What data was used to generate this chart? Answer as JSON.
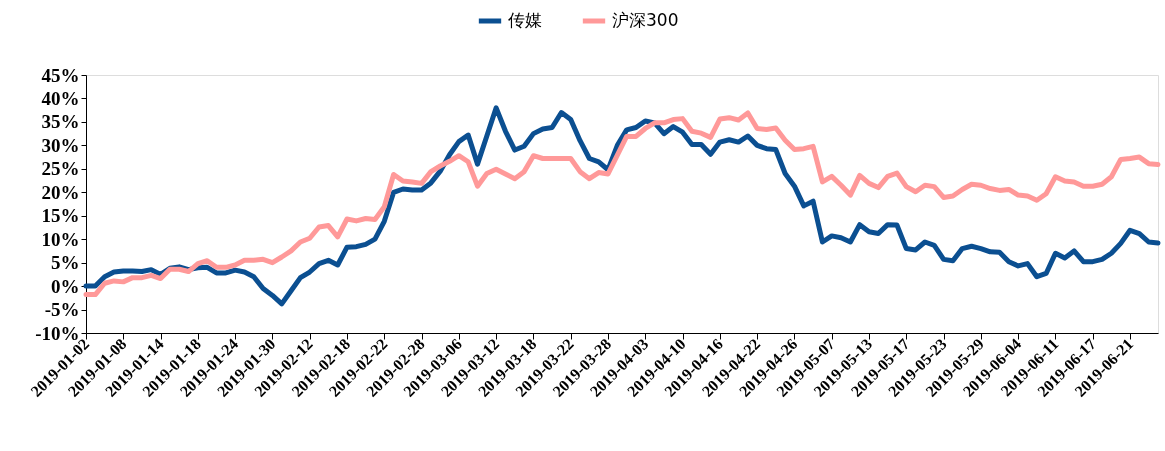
{
  "chart_data": {
    "type": "line",
    "categories": [
      "2019-01-02",
      null,
      null,
      null,
      "2019-01-08",
      null,
      null,
      null,
      "2019-01-14",
      null,
      null,
      null,
      "2019-01-18",
      null,
      null,
      null,
      "2019-01-24",
      null,
      null,
      null,
      "2019-01-30",
      null,
      null,
      null,
      "2019-02-12",
      null,
      null,
      null,
      "2019-02-18",
      null,
      null,
      null,
      "2019-02-22",
      null,
      null,
      null,
      "2019-02-28",
      null,
      null,
      null,
      "2019-03-06",
      null,
      null,
      null,
      "2019-03-12",
      null,
      null,
      null,
      "2019-03-18",
      null,
      null,
      null,
      "2019-03-22",
      null,
      null,
      null,
      "2019-03-28",
      null,
      null,
      null,
      "2019-04-03",
      null,
      null,
      null,
      "2019-04-10",
      null,
      null,
      null,
      "2019-04-16",
      null,
      null,
      null,
      "2019-04-22",
      null,
      null,
      null,
      "2019-04-26",
      null,
      null,
      null,
      "2019-05-07",
      null,
      null,
      null,
      "2019-05-13",
      null,
      null,
      null,
      "2019-05-17",
      null,
      null,
      null,
      "2019-05-23",
      null,
      null,
      null,
      "2019-05-29",
      null,
      null,
      null,
      "2019-06-04",
      null,
      null,
      null,
      "2019-06-11",
      null,
      null,
      null,
      "2019-06-17",
      null,
      null,
      null,
      "2019-06-21",
      null,
      null,
      null
    ],
    "series": [
      {
        "name": "传媒",
        "color": "#0b4f91",
        "values": [
          0.0,
          0.0,
          2.0,
          3.0,
          3.2,
          3.2,
          3.1,
          3.5,
          2.5,
          3.8,
          4.1,
          3.5,
          3.9,
          4.0,
          2.8,
          2.8,
          3.4,
          3.0,
          2.0,
          -0.5,
          -2.0,
          -3.8,
          -1.0,
          1.8,
          3.0,
          4.8,
          5.5,
          4.5,
          8.3,
          8.4,
          8.9,
          10.0,
          13.8,
          20.0,
          20.7,
          20.5,
          20.5,
          22.0,
          24.5,
          28.0,
          30.8,
          32.2,
          26.0,
          32.0,
          38.0,
          33.0,
          29.0,
          29.8,
          32.5,
          33.5,
          33.8,
          37.0,
          35.5,
          31.0,
          27.2,
          26.5,
          24.8,
          30.0,
          33.3,
          33.8,
          35.2,
          34.8,
          32.5,
          34.0,
          32.8,
          30.2,
          30.2,
          28.1,
          30.7,
          31.2,
          30.7,
          32.0,
          30.0,
          29.3,
          29.1,
          24.0,
          21.3,
          17.1,
          18.1,
          9.4,
          10.7,
          10.3,
          9.4,
          13.1,
          11.6,
          11.2,
          13.1,
          13.0,
          8.0,
          7.7,
          9.4,
          8.7,
          5.7,
          5.4,
          8.0,
          8.5,
          8.0,
          7.3,
          7.2,
          5.2,
          4.3,
          4.8,
          2.0,
          2.7,
          7.0,
          6.0,
          7.5,
          5.2,
          5.2,
          5.7,
          7.0,
          9.1,
          11.9,
          11.2,
          9.4,
          9.2
        ]
      },
      {
        "name": "沪深300",
        "color": "#ff9999",
        "values": [
          -1.8,
          -1.8,
          0.6,
          1.1,
          0.9,
          1.8,
          1.8,
          2.3,
          1.6,
          3.6,
          3.6,
          3.1,
          4.8,
          5.4,
          4.0,
          4.0,
          4.5,
          5.5,
          5.5,
          5.7,
          5.0,
          6.2,
          7.5,
          9.4,
          10.2,
          12.6,
          12.9,
          10.5,
          14.3,
          13.9,
          14.4,
          14.2,
          16.9,
          23.8,
          22.4,
          22.2,
          21.9,
          24.4,
          25.6,
          26.6,
          27.8,
          26.5,
          21.3,
          24.0,
          24.9,
          23.9,
          22.9,
          24.4,
          27.8,
          27.2,
          27.2,
          27.2,
          27.2,
          24.4,
          22.9,
          24.2,
          23.9,
          27.9,
          31.9,
          31.9,
          33.6,
          34.8,
          34.8,
          35.5,
          35.7,
          33.0,
          32.6,
          31.7,
          35.6,
          35.9,
          35.4,
          36.9,
          33.6,
          33.4,
          33.7,
          31.1,
          29.1,
          29.3,
          29.8,
          22.2,
          23.4,
          21.5,
          19.4,
          23.6,
          21.9,
          21.0,
          23.4,
          24.1,
          21.2,
          20.1,
          21.5,
          21.2,
          18.9,
          19.2,
          20.6,
          21.7,
          21.5,
          20.8,
          20.4,
          20.6,
          19.4,
          19.2,
          18.3,
          19.7,
          23.3,
          22.4,
          22.2,
          21.3,
          21.3,
          21.7,
          23.3,
          27.0,
          27.2,
          27.5,
          26.1,
          25.9
        ]
      }
    ],
    "ylim": [
      -10,
      45
    ],
    "yticks": [
      {
        "value": -10,
        "label": "-10%"
      },
      {
        "value": -5,
        "label": "-5%"
      },
      {
        "value": 0,
        "label": "0%"
      },
      {
        "value": 5,
        "label": "5%"
      },
      {
        "value": 10,
        "label": "10%"
      },
      {
        "value": 15,
        "label": "15%"
      },
      {
        "value": 20,
        "label": "20%"
      },
      {
        "value": 25,
        "label": "25%"
      },
      {
        "value": 30,
        "label": "30%"
      },
      {
        "value": 35,
        "label": "35%"
      },
      {
        "value": 40,
        "label": "40%"
      },
      {
        "value": 45,
        "label": "45%"
      }
    ],
    "legend": "top",
    "grid": false,
    "line_style": "solid"
  }
}
